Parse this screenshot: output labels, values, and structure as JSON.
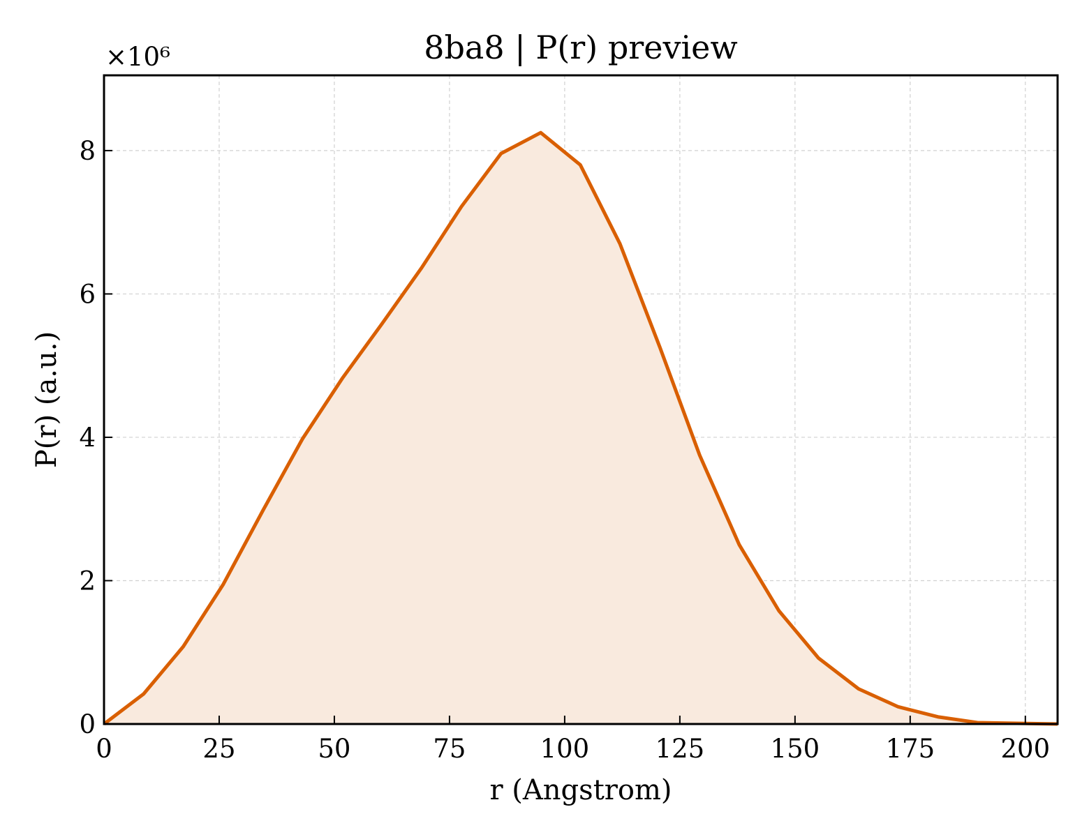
{
  "chart_data": {
    "type": "area",
    "title": "8ba8 | P(r) preview",
    "xlabel": "r (Angstrom)",
    "ylabel": "P(r) (a.u.)",
    "y_offset_label": "×10⁶",
    "y_scale": 1000000,
    "xlim": [
      0,
      207
    ],
    "ylim": [
      0,
      9.05
    ],
    "x_ticks": [
      0,
      25,
      50,
      75,
      100,
      125,
      150,
      175,
      200
    ],
    "y_ticks": [
      0,
      2,
      4,
      6,
      8
    ],
    "grid": true,
    "line_color": "#d95f02",
    "fill_color": "#f9eade",
    "series": [
      {
        "x": [
          0,
          8.6,
          17.2,
          25.9,
          34.5,
          43.1,
          51.7,
          60.3,
          69.0,
          77.6,
          86.2,
          94.8,
          103.4,
          112.0,
          120.7,
          129.3,
          137.9,
          146.5,
          155.1,
          163.8,
          172.4,
          181.0,
          189.6,
          198.2,
          207.0
        ],
        "y": [
          0.0,
          0.42,
          1.08,
          1.95,
          2.98,
          3.98,
          4.82,
          5.58,
          6.37,
          7.22,
          7.96,
          8.25,
          7.8,
          6.7,
          5.25,
          3.75,
          2.5,
          1.58,
          0.92,
          0.49,
          0.24,
          0.1,
          0.02,
          0.01,
          0.0
        ]
      }
    ]
  }
}
